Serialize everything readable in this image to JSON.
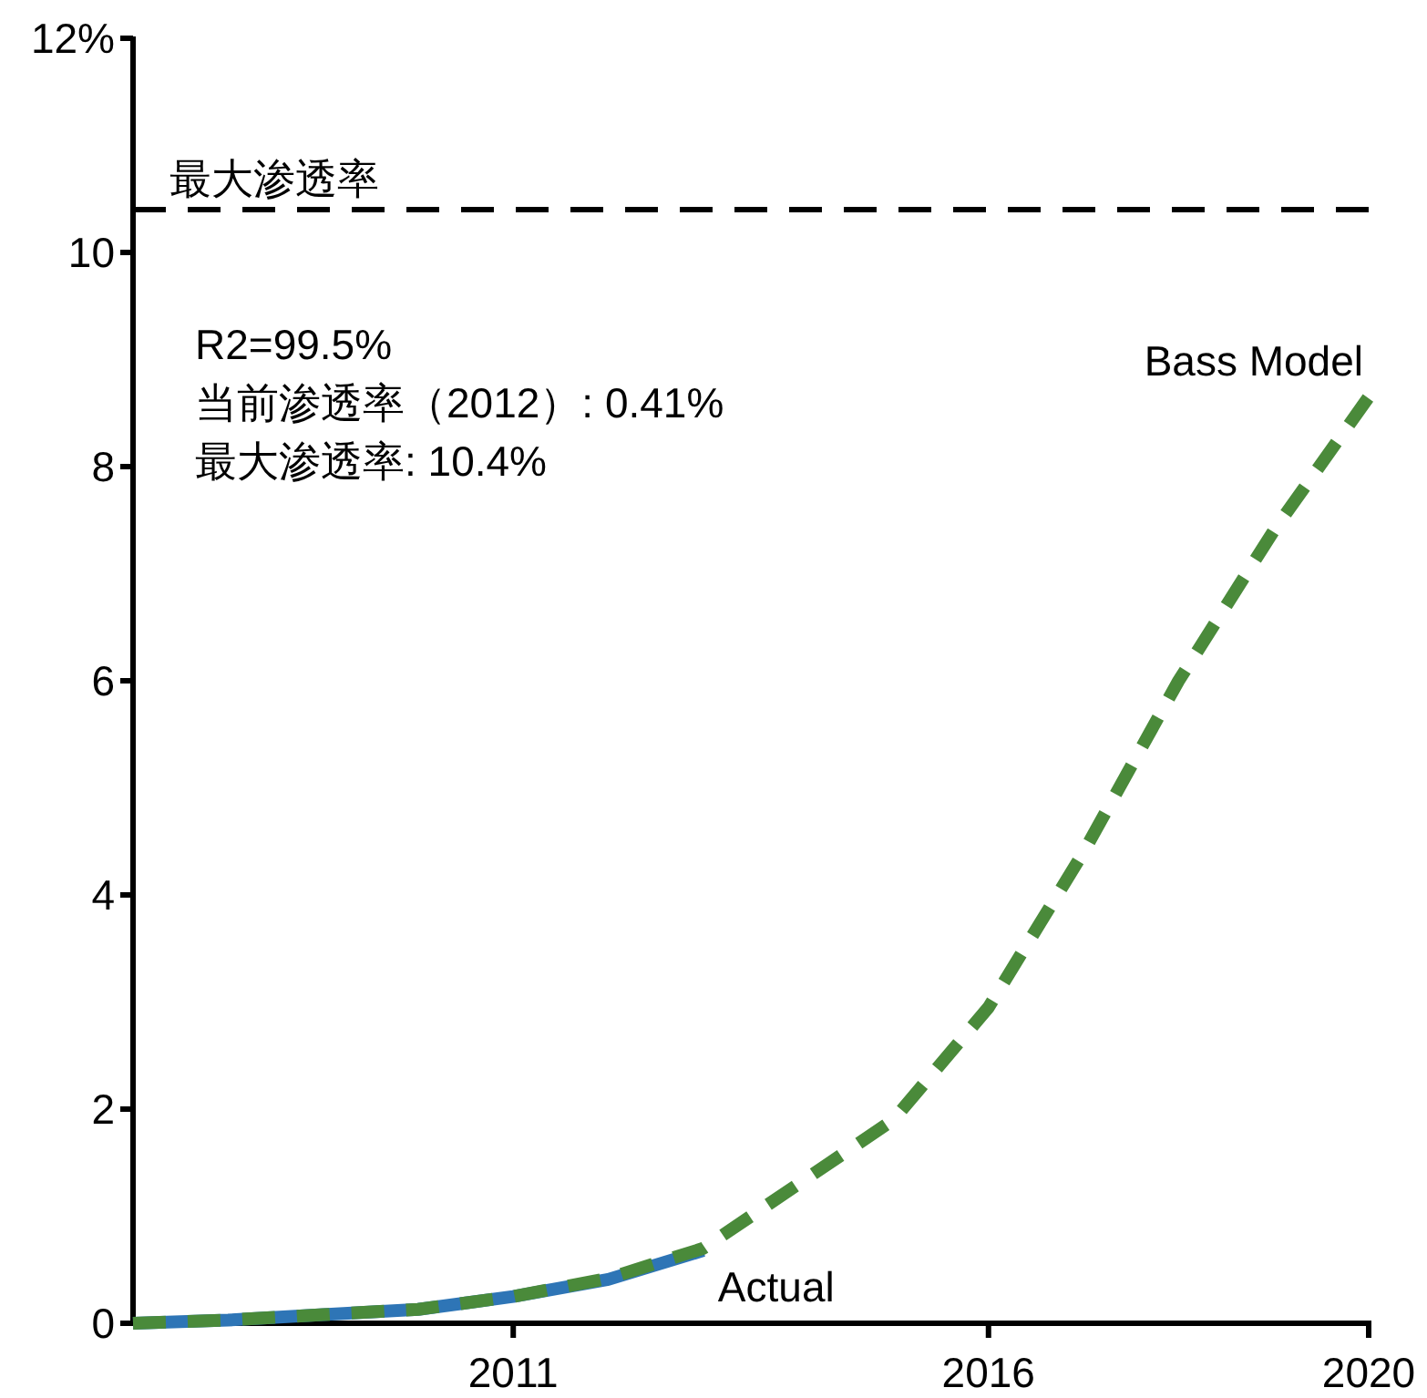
{
  "chart_data": {
    "type": "line",
    "xlim": [
      2007,
      2020
    ],
    "ylim": [
      0,
      12
    ],
    "xticks": [
      2011,
      2016,
      2020
    ],
    "yticks": [
      0,
      2,
      4,
      6,
      8,
      10,
      {
        "value": 12,
        "label": "12%"
      }
    ],
    "grid": false,
    "marker": "none",
    "series": [
      {
        "name": "Actual",
        "color": "#2e75b6",
        "line_style": "solid",
        "x": [
          2007,
          2008,
          2009,
          2010,
          2011,
          2012,
          2013
        ],
        "values": [
          0,
          0.03,
          0.08,
          0.13,
          0.25,
          0.41,
          0.68
        ]
      },
      {
        "name": "Bass Model",
        "color": "#4a8a3a",
        "line_style": "dashed",
        "x": [
          2007,
          2008,
          2009,
          2010,
          2011,
          2012,
          2013,
          2014,
          2015,
          2016,
          2017,
          2018,
          2019,
          2020
        ],
        "values": [
          0,
          0.03,
          0.08,
          0.13,
          0.25,
          0.42,
          0.7,
          1.3,
          1.9,
          2.95,
          4.4,
          6.0,
          7.4,
          8.65
        ]
      }
    ],
    "ref_lines": [
      {
        "axis": "y",
        "value": 10.4,
        "label": "最大渗透率",
        "color": "#000000",
        "line_style": "dashed"
      }
    ],
    "annotations": [
      "R2=99.5%",
      "当前渗透率（2012）: 0.41%",
      "最大渗透率: 10.4%"
    ]
  }
}
